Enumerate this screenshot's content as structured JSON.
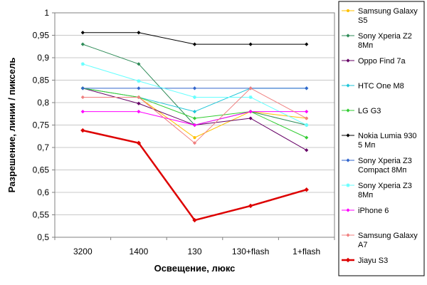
{
  "chart_data": {
    "type": "line",
    "title": "",
    "xlabel": "Освещение, люкс",
    "ylabel": "Разрешение, линии / пиксель",
    "categories": [
      "3200",
      "1400",
      "130",
      "130+flash",
      "1+flash"
    ],
    "ylim": [
      0.5,
      1.0
    ],
    "yticks": [
      "0,5",
      "0,55",
      "0,6",
      "0,65",
      "0,7",
      "0,75",
      "0,8",
      "0,85",
      "0,9",
      "0,95",
      "1"
    ],
    "ytick_values": [
      0.5,
      0.55,
      0.6,
      0.65,
      0.7,
      0.75,
      0.8,
      0.85,
      0.9,
      0.95,
      1.0
    ],
    "grid": "horizontal",
    "legend_position": "right",
    "series": [
      {
        "name_lines": [
          "Samsung Galaxy",
          "S5"
        ],
        "color": "#ffc000",
        "marker": "circle",
        "values": [
          0.832,
          0.812,
          0.722,
          0.78,
          0.765
        ]
      },
      {
        "name_lines": [
          "Sony Xperia Z2",
          "8Мп"
        ],
        "color": "#2e8b57",
        "marker": "diamond",
        "values": [
          0.93,
          0.886,
          0.75,
          0.78,
          0.75
        ]
      },
      {
        "name_lines": [
          "Oppo Find 7a"
        ],
        "color": "#660066",
        "marker": "diamond",
        "values": [
          0.832,
          0.798,
          0.75,
          0.765,
          0.694
        ]
      },
      {
        "name_lines": [
          "HTC One M8"
        ],
        "color": "#1fc6d8",
        "marker": "diamond",
        "values": [
          0.832,
          0.812,
          0.78,
          0.832,
          0.832
        ]
      },
      {
        "name_lines": [
          "LG G3"
        ],
        "color": "#33cc33",
        "marker": "diamond",
        "values": [
          0.832,
          0.812,
          0.765,
          0.78,
          0.722
        ]
      },
      {
        "name_lines": [
          "Nokia Lumia 930",
          "5 Мп"
        ],
        "color": "#000000",
        "marker": "diamond",
        "values": [
          0.956,
          0.956,
          0.93,
          0.93,
          0.93
        ]
      },
      {
        "name_lines": [
          "Sony Xperia Z3",
          "Compact 8Мп"
        ],
        "color": "#3366cc",
        "marker": "diamond",
        "values": [
          0.832,
          0.832,
          0.832,
          0.832,
          0.832
        ]
      },
      {
        "name_lines": [
          "Sony Xperia Z3",
          "8Мп"
        ],
        "color": "#66ffff",
        "marker": "star",
        "values": [
          0.886,
          0.848,
          0.812,
          0.812,
          0.75
        ]
      },
      {
        "name_lines": [
          "iPhone 6"
        ],
        "color": "#ff00ff",
        "marker": "diamond",
        "values": [
          0.78,
          0.78,
          0.75,
          0.78,
          0.78
        ]
      },
      {
        "name_lines": [
          "Samsung Galaxy",
          "A7"
        ],
        "color": "#f08080",
        "marker": "diamond",
        "values": [
          0.812,
          0.812,
          0.71,
          0.832,
          0.765
        ]
      },
      {
        "name_lines": [
          "Jiayu S3"
        ],
        "color": "#dd0000",
        "marker": "diamond",
        "bold": true,
        "values": [
          0.738,
          0.71,
          0.538,
          0.57,
          0.606
        ]
      }
    ]
  }
}
